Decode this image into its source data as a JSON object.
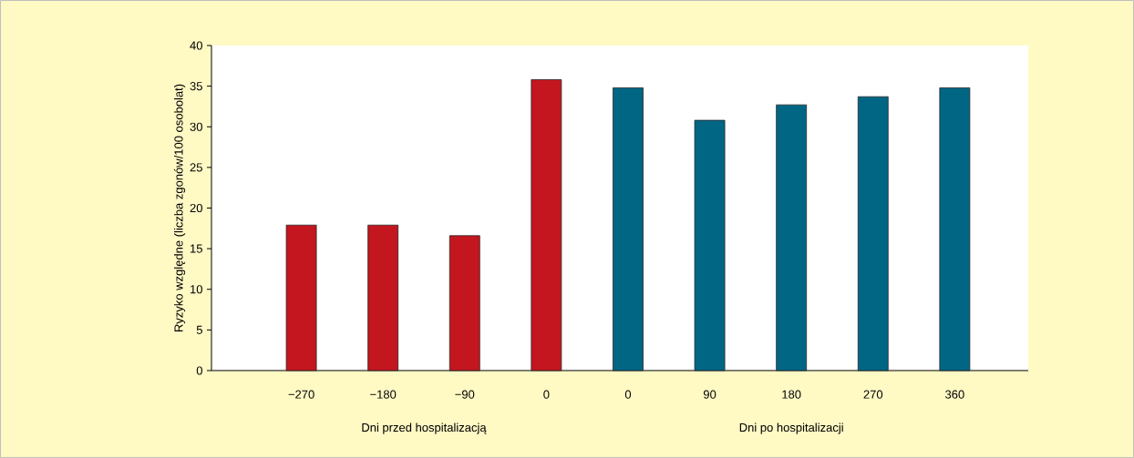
{
  "chart_data": {
    "type": "bar",
    "ylabel": "Ryzyko względne (liczba zgonów/100 osobolat)",
    "categories": [
      "−270",
      "−180",
      "−90",
      "0",
      "0",
      "90",
      "180",
      "270",
      "360"
    ],
    "series": [
      {
        "color": "#c3161f",
        "values": [
          17.9,
          17.9,
          16.6,
          35.8,
          null,
          null,
          null,
          null,
          null
        ]
      },
      {
        "color": "#006684",
        "values": [
          null,
          null,
          null,
          null,
          34.8,
          30.8,
          32.7,
          33.7,
          34.8
        ]
      }
    ],
    "ylim": [
      0,
      40
    ],
    "yticks": [
      0,
      5,
      10,
      15,
      20,
      25,
      30,
      35,
      40
    ],
    "annotations": [
      "Dni przed hospitalizacją",
      "Dni po hospitalizacji"
    ]
  }
}
